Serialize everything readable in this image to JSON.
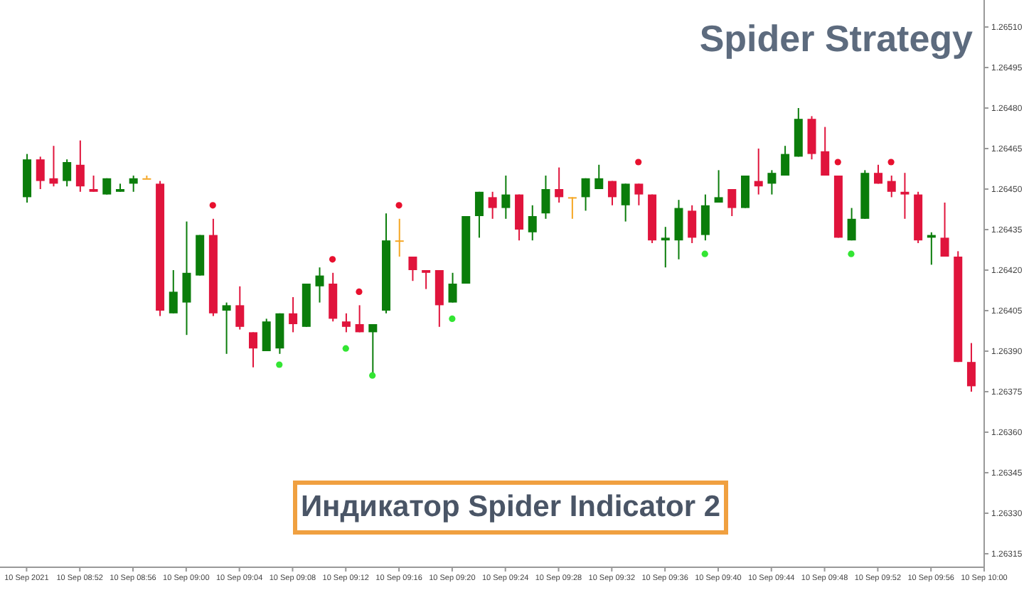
{
  "chart_data": {
    "type": "candlestick",
    "title": "Spider Strategy",
    "annotations": [
      "Индикатор Spider Indicator 2"
    ],
    "x": [
      "2021-09-10T08:48",
      "2021-09-10T08:49",
      "2021-09-10T08:50",
      "2021-09-10T08:51",
      "2021-09-10T08:52",
      "2021-09-10T08:53",
      "2021-09-10T08:54",
      "2021-09-10T08:55",
      "2021-09-10T08:56",
      "2021-09-10T08:57",
      "2021-09-10T08:58",
      "2021-09-10T08:59",
      "2021-09-10T09:00",
      "2021-09-10T09:01",
      "2021-09-10T09:02",
      "2021-09-10T09:03",
      "2021-09-10T09:04",
      "2021-09-10T09:05",
      "2021-09-10T09:06",
      "2021-09-10T09:07",
      "2021-09-10T09:08",
      "2021-09-10T09:09",
      "2021-09-10T09:10",
      "2021-09-10T09:11",
      "2021-09-10T09:12",
      "2021-09-10T09:13",
      "2021-09-10T09:14",
      "2021-09-10T09:15",
      "2021-09-10T09:16",
      "2021-09-10T09:17",
      "2021-09-10T09:18",
      "2021-09-10T09:19",
      "2021-09-10T09:20",
      "2021-09-10T09:21",
      "2021-09-10T09:22",
      "2021-09-10T09:23",
      "2021-09-10T09:24",
      "2021-09-10T09:25",
      "2021-09-10T09:26",
      "2021-09-10T09:27",
      "2021-09-10T09:28",
      "2021-09-10T09:29",
      "2021-09-10T09:30",
      "2021-09-10T09:31",
      "2021-09-10T09:32",
      "2021-09-10T09:33",
      "2021-09-10T09:34",
      "2021-09-10T09:35",
      "2021-09-10T09:36",
      "2021-09-10T09:37",
      "2021-09-10T09:38",
      "2021-09-10T09:39",
      "2021-09-10T09:40",
      "2021-09-10T09:41",
      "2021-09-10T09:42",
      "2021-09-10T09:43",
      "2021-09-10T09:44",
      "2021-09-10T09:45",
      "2021-09-10T09:46",
      "2021-09-10T09:47",
      "2021-09-10T09:48",
      "2021-09-10T09:49",
      "2021-09-10T09:50",
      "2021-09-10T09:51",
      "2021-09-10T09:52",
      "2021-09-10T09:53",
      "2021-09-10T09:54",
      "2021-09-10T09:55",
      "2021-09-10T09:56",
      "2021-09-10T09:57",
      "2021-09-10T09:58",
      "2021-09-10T09:59"
    ],
    "ohlc": [
      [
        1.26447,
        1.26463,
        1.26445,
        1.26461
      ],
      [
        1.26461,
        1.26462,
        1.2645,
        1.26453
      ],
      [
        1.26454,
        1.26466,
        1.26451,
        1.26452
      ],
      [
        1.26453,
        1.26461,
        1.26451,
        1.2646
      ],
      [
        1.26459,
        1.26468,
        1.26449,
        1.26451
      ],
      [
        1.2645,
        1.26455,
        1.26449,
        1.26449
      ],
      [
        1.26448,
        1.26454,
        1.26448,
        1.26454
      ],
      [
        1.26449,
        1.26452,
        1.26449,
        1.2645
      ],
      [
        1.26452,
        1.26455,
        1.26449,
        1.26454
      ],
      [
        1.26454,
        1.26455,
        1.26454,
        1.26454
      ],
      [
        1.26452,
        1.26453,
        1.26403,
        1.26405
      ],
      [
        1.26404,
        1.2642,
        1.26404,
        1.26412
      ],
      [
        1.26408,
        1.26438,
        1.26396,
        1.26419
      ],
      [
        1.26418,
        1.26433,
        1.26418,
        1.26433
      ],
      [
        1.26433,
        1.26439,
        1.26403,
        1.26404
      ],
      [
        1.26405,
        1.26408,
        1.26389,
        1.26407
      ],
      [
        1.26407,
        1.26414,
        1.26398,
        1.26399
      ],
      [
        1.26397,
        1.26397,
        1.26384,
        1.26391
      ],
      [
        1.2639,
        1.26402,
        1.2639,
        1.26401
      ],
      [
        1.26391,
        1.26404,
        1.26389,
        1.26404
      ],
      [
        1.26404,
        1.2641,
        1.26397,
        1.264
      ],
      [
        1.26399,
        1.26415,
        1.26399,
        1.26415
      ],
      [
        1.26414,
        1.26421,
        1.26408,
        1.26418
      ],
      [
        1.26415,
        1.26419,
        1.26401,
        1.26402
      ],
      [
        1.26401,
        1.26404,
        1.26397,
        1.26399
      ],
      [
        1.264,
        1.26407,
        1.26397,
        1.26397
      ],
      [
        1.26397,
        1.264,
        1.26381,
        1.264
      ],
      [
        1.26405,
        1.26441,
        1.26404,
        1.26431
      ],
      [
        1.26431,
        1.26439,
        1.26425,
        1.26431
      ],
      [
        1.26425,
        1.26425,
        1.26416,
        1.2642
      ],
      [
        1.2642,
        1.2642,
        1.26413,
        1.26419
      ],
      [
        1.2642,
        1.2642,
        1.26399,
        1.26407
      ],
      [
        1.26408,
        1.26419,
        1.26408,
        1.26415
      ],
      [
        1.26415,
        1.2644,
        1.26415,
        1.2644
      ],
      [
        1.2644,
        1.26449,
        1.26432,
        1.26449
      ],
      [
        1.26447,
        1.26449,
        1.26439,
        1.26443
      ],
      [
        1.26443,
        1.26455,
        1.26439,
        1.26448
      ],
      [
        1.26448,
        1.26448,
        1.26431,
        1.26435
      ],
      [
        1.26434,
        1.26444,
        1.26431,
        1.2644
      ],
      [
        1.26441,
        1.26455,
        1.26439,
        1.2645
      ],
      [
        1.2645,
        1.26458,
        1.26445,
        1.26447
      ],
      [
        1.26447,
        1.26447,
        1.26439,
        1.26447
      ],
      [
        1.26447,
        1.26454,
        1.26442,
        1.26454
      ],
      [
        1.2645,
        1.26459,
        1.2645,
        1.26454
      ],
      [
        1.26453,
        1.26453,
        1.26444,
        1.26447
      ],
      [
        1.26444,
        1.26452,
        1.26438,
        1.26452
      ],
      [
        1.26452,
        1.26452,
        1.26444,
        1.26448
      ],
      [
        1.26448,
        1.26448,
        1.2643,
        1.26431
      ],
      [
        1.26431,
        1.26436,
        1.26421,
        1.26432
      ],
      [
        1.26431,
        1.26446,
        1.26424,
        1.26443
      ],
      [
        1.26442,
        1.26444,
        1.2643,
        1.26432
      ],
      [
        1.26433,
        1.26448,
        1.26431,
        1.26444
      ],
      [
        1.26445,
        1.26457,
        1.26445,
        1.26447
      ],
      [
        1.2645,
        1.2645,
        1.2644,
        1.26443
      ],
      [
        1.26443,
        1.26455,
        1.26443,
        1.26455
      ],
      [
        1.26453,
        1.26465,
        1.26448,
        1.26451
      ],
      [
        1.26452,
        1.26457,
        1.26448,
        1.26456
      ],
      [
        1.26455,
        1.26466,
        1.26455,
        1.26463
      ],
      [
        1.26462,
        1.2648,
        1.26462,
        1.26476
      ],
      [
        1.26476,
        1.26477,
        1.26461,
        1.26463
      ],
      [
        1.26464,
        1.26473,
        1.26455,
        1.26455
      ],
      [
        1.26455,
        1.26455,
        1.26432,
        1.26432
      ],
      [
        1.26431,
        1.26443,
        1.26431,
        1.26439
      ],
      [
        1.26439,
        1.26457,
        1.26439,
        1.26456
      ],
      [
        1.26456,
        1.26459,
        1.26452,
        1.26452
      ],
      [
        1.26453,
        1.26455,
        1.26447,
        1.26449
      ],
      [
        1.26449,
        1.26456,
        1.26439,
        1.26448
      ],
      [
        1.26448,
        1.26449,
        1.2643,
        1.26431
      ],
      [
        1.26432,
        1.26434,
        1.26422,
        1.26433
      ],
      [
        1.26432,
        1.26445,
        1.26425,
        1.26425
      ],
      [
        1.26425,
        1.26427,
        1.26386,
        1.26386
      ],
      [
        1.26386,
        1.26393,
        1.26375,
        1.26377
      ]
    ],
    "colors": [
      "#0b7d0b",
      "#e0143c",
      "#e0143c",
      "#0b7d0b",
      "#e0143c",
      "#e0143c",
      "#0b7d0b",
      "#0b7d0b",
      "#0b7d0b",
      "#f5a623",
      "#e0143c",
      "#0b7d0b",
      "#0b7d0b",
      "#0b7d0b",
      "#e0143c",
      "#0b7d0b",
      "#e0143c",
      "#e0143c",
      "#0b7d0b",
      "#0b7d0b",
      "#e0143c",
      "#0b7d0b",
      "#0b7d0b",
      "#e0143c",
      "#e0143c",
      "#e0143c",
      "#0b7d0b",
      "#0b7d0b",
      "#f5a623",
      "#e0143c",
      "#e0143c",
      "#e0143c",
      "#0b7d0b",
      "#0b7d0b",
      "#0b7d0b",
      "#e0143c",
      "#0b7d0b",
      "#e0143c",
      "#0b7d0b",
      "#0b7d0b",
      "#e0143c",
      "#f5a623",
      "#0b7d0b",
      "#0b7d0b",
      "#e0143c",
      "#0b7d0b",
      "#e0143c",
      "#e0143c",
      "#0b7d0b",
      "#0b7d0b",
      "#e0143c",
      "#0b7d0b",
      "#0b7d0b",
      "#e0143c",
      "#0b7d0b",
      "#e0143c",
      "#0b7d0b",
      "#0b7d0b",
      "#0b7d0b",
      "#e0143c",
      "#e0143c",
      "#e0143c",
      "#0b7d0b",
      "#0b7d0b",
      "#e0143c",
      "#e0143c",
      "#e0143c",
      "#e0143c",
      "#0b7d0b",
      "#e0143c",
      "#e0143c",
      "#e0143c"
    ],
    "series": [
      {
        "type": "scatter",
        "color": "#e8102e",
        "x": [
          "2021-09-10T09:02",
          "2021-09-10T09:11",
          "2021-09-10T09:13",
          "2021-09-10T09:16",
          "2021-09-10T09:34",
          "2021-09-10T09:49",
          "2021-09-10T09:53"
        ],
        "values": [
          1.26444,
          1.26424,
          1.26412,
          1.26444,
          1.2646,
          1.2646,
          1.2646
        ]
      },
      {
        "type": "scatter",
        "color": "#33e533",
        "x": [
          "2021-09-10T09:07",
          "2021-09-10T09:12",
          "2021-09-10T09:14",
          "2021-09-10T09:20",
          "2021-09-10T09:39",
          "2021-09-10T09:50"
        ],
        "values": [
          1.26385,
          1.26391,
          1.26381,
          1.26402,
          1.26426,
          1.26426
        ]
      }
    ],
    "marker": "circle",
    "xlim": [
      "2021-09-10T08:46",
      "2021-09-10T10:00"
    ],
    "xticks": [
      {
        "value": "2021-09-10T08:48",
        "label": "10 Sep 2021"
      },
      {
        "value": "2021-09-10T08:52",
        "label": "10 Sep 08:52"
      },
      {
        "value": "2021-09-10T08:56",
        "label": "10 Sep 08:56"
      },
      {
        "value": "2021-09-10T09:00",
        "label": "10 Sep 09:00"
      },
      {
        "value": "2021-09-10T09:04",
        "label": "10 Sep 09:04"
      },
      {
        "value": "2021-09-10T09:08",
        "label": "10 Sep 09:08"
      },
      {
        "value": "2021-09-10T09:12",
        "label": "10 Sep 09:12"
      },
      {
        "value": "2021-09-10T09:16",
        "label": "10 Sep 09:16"
      },
      {
        "value": "2021-09-10T09:20",
        "label": "10 Sep 09:20"
      },
      {
        "value": "2021-09-10T09:24",
        "label": "10 Sep 09:24"
      },
      {
        "value": "2021-09-10T09:28",
        "label": "10 Sep 09:28"
      },
      {
        "value": "2021-09-10T09:32",
        "label": "10 Sep 09:32"
      },
      {
        "value": "2021-09-10T09:36",
        "label": "10 Sep 09:36"
      },
      {
        "value": "2021-09-10T09:40",
        "label": "10 Sep 09:40"
      },
      {
        "value": "2021-09-10T09:44",
        "label": "10 Sep 09:44"
      },
      {
        "value": "2021-09-10T09:48",
        "label": "10 Sep 09:48"
      },
      {
        "value": "2021-09-10T09:52",
        "label": "10 Sep 09:52"
      },
      {
        "value": "2021-09-10T09:56",
        "label": "10 Sep 09:56"
      },
      {
        "value": "2021-09-10T10:00",
        "label": "10 Sep 10:00"
      }
    ],
    "ylim": [
      1.2631,
      1.2652
    ],
    "yticks": [
      1.26315,
      {
        "value": 1.2633,
        "label": "1.26330"
      },
      1.26345,
      {
        "value": 1.2636,
        "label": "1.26360"
      },
      1.26375,
      {
        "value": 1.2639,
        "label": "1.26390"
      },
      1.26405,
      {
        "value": 1.2642,
        "label": "1.26420"
      },
      1.26435,
      {
        "value": 1.2645,
        "label": "1.26450"
      },
      1.26465,
      {
        "value": 1.2648,
        "label": "1.26480"
      },
      1.26495,
      {
        "value": 1.2651,
        "label": "1.26510"
      }
    ]
  }
}
